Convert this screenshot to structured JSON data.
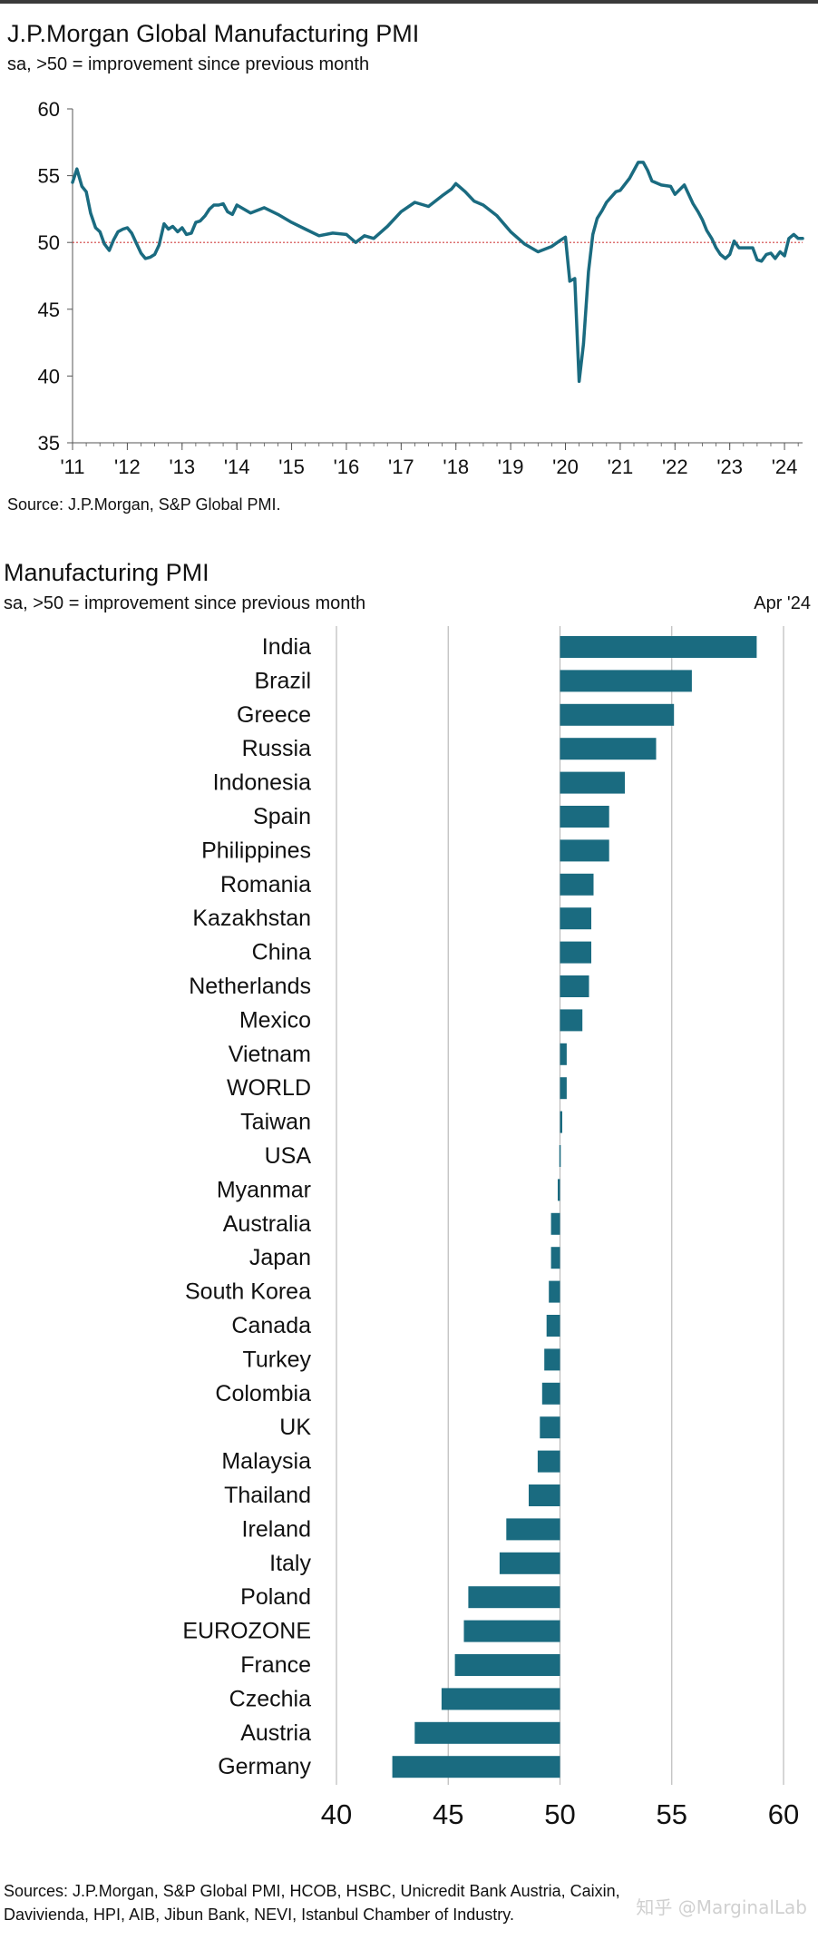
{
  "line_chart": {
    "title": "J.P.Morgan Global Manufacturing PMI",
    "subtitle": "sa, >50 = improvement since previous month",
    "source": "Source: J.P.Morgan, S&P Global PMI.",
    "colors": {
      "line": "#1a6b80",
      "reference": "#d04040",
      "axis": "#555555"
    }
  },
  "bar_chart": {
    "title": "Manufacturing PMI",
    "subtitle": "sa, >50 = improvement since previous month",
    "date_label": "Apr '24",
    "source_line1": "Sources: J.P.Morgan, S&P Global PMI, HCOB, HSBC, Unicredit Bank Austria, Caixin,",
    "source_line2": "Davivienda, HPI, AIB, Jibun Bank, NEVI, Istanbul Chamber of Industry.",
    "colors": {
      "bar": "#1a6b80",
      "grid": "#bbbbbb"
    }
  },
  "watermark": "知乎 @MarginalLab",
  "chart_data": [
    {
      "type": "line",
      "x_tick_labels": [
        "'11",
        "'12",
        "'13",
        "'14",
        "'15",
        "'16",
        "'17",
        "'18",
        "'19",
        "'20",
        "'21",
        "'22",
        "'23",
        "'24"
      ],
      "y_ticks": [
        35,
        40,
        45,
        50,
        55,
        60
      ],
      "ylim": [
        35,
        60
      ],
      "xlim": [
        2011.0,
        2024.33
      ],
      "reference_line": 50,
      "series": [
        {
          "x": [
            2011.0,
            2011.08,
            2011.17,
            2011.25,
            2011.33,
            2011.42,
            2011.5,
            2011.58,
            2011.67,
            2011.75,
            2011.83,
            2011.92,
            2012.0,
            2012.08,
            2012.17,
            2012.25,
            2012.33,
            2012.42,
            2012.5,
            2012.58,
            2012.67,
            2012.75,
            2012.83,
            2012.92,
            2013.0,
            2013.08,
            2013.17,
            2013.25,
            2013.33,
            2013.42,
            2013.5,
            2013.58,
            2013.67,
            2013.75,
            2013.83,
            2013.92,
            2014.0,
            2014.25,
            2014.5,
            2014.75,
            2015.0,
            2015.25,
            2015.5,
            2015.75,
            2016.0,
            2016.17,
            2016.33,
            2016.5,
            2016.75,
            2017.0,
            2017.25,
            2017.5,
            2017.75,
            2017.92,
            2018.0,
            2018.17,
            2018.33,
            2018.5,
            2018.75,
            2019.0,
            2019.25,
            2019.5,
            2019.75,
            2019.92,
            2020.0,
            2020.08,
            2020.17,
            2020.25,
            2020.33,
            2020.42,
            2020.5,
            2020.58,
            2020.67,
            2020.75,
            2020.92,
            2021.0,
            2021.17,
            2021.33,
            2021.42,
            2021.5,
            2021.58,
            2021.75,
            2021.92,
            2022.0,
            2022.17,
            2022.33,
            2022.42,
            2022.5,
            2022.58,
            2022.67,
            2022.75,
            2022.83,
            2022.92,
            2023.0,
            2023.08,
            2023.17,
            2023.25,
            2023.42,
            2023.5,
            2023.58,
            2023.67,
            2023.75,
            2023.83,
            2023.92,
            2024.0,
            2024.08,
            2024.17,
            2024.25,
            2024.33
          ],
          "y": [
            54.5,
            55.5,
            54.2,
            53.8,
            52.2,
            51.1,
            50.8,
            49.9,
            49.4,
            50.2,
            50.8,
            51.0,
            51.1,
            50.7,
            49.9,
            49.2,
            48.8,
            48.9,
            49.1,
            49.8,
            51.4,
            51.0,
            51.2,
            50.8,
            51.1,
            50.6,
            50.7,
            51.5,
            51.6,
            52.0,
            52.5,
            52.8,
            52.8,
            52.9,
            52.3,
            52.1,
            52.8,
            52.2,
            52.6,
            52.1,
            51.5,
            51.0,
            50.5,
            50.7,
            50.6,
            50.0,
            50.5,
            50.3,
            51.2,
            52.3,
            53.0,
            52.7,
            53.5,
            54.0,
            54.4,
            53.8,
            53.1,
            52.8,
            52.0,
            50.8,
            49.9,
            49.3,
            49.7,
            50.2,
            50.4,
            47.1,
            47.3,
            39.6,
            42.4,
            47.8,
            50.6,
            51.8,
            52.4,
            53.0,
            53.8,
            53.9,
            54.8,
            56.0,
            56.0,
            55.4,
            54.6,
            54.3,
            54.2,
            53.6,
            54.3,
            52.9,
            52.3,
            51.7,
            50.9,
            50.3,
            49.6,
            49.1,
            48.8,
            49.1,
            50.1,
            49.6,
            49.6,
            49.6,
            48.7,
            48.6,
            49.1,
            49.2,
            48.8,
            49.3,
            49.0,
            50.3,
            50.6,
            50.3,
            50.3
          ]
        }
      ]
    },
    {
      "type": "bar",
      "orientation": "horizontal",
      "baseline": 50,
      "xlim": [
        40,
        60
      ],
      "x_ticks": [
        40,
        45,
        50,
        55,
        60
      ],
      "categories": [
        "India",
        "Brazil",
        "Greece",
        "Russia",
        "Indonesia",
        "Spain",
        "Philippines",
        "Romania",
        "Kazakhstan",
        "China",
        "Netherlands",
        "Mexico",
        "Vietnam",
        "WORLD",
        "Taiwan",
        "USA",
        "Myanmar",
        "Australia",
        "Japan",
        "South Korea",
        "Canada",
        "Turkey",
        "Colombia",
        "UK",
        "Malaysia",
        "Thailand",
        "Ireland",
        "Italy",
        "Poland",
        "EUROZONE",
        "France",
        "Czechia",
        "Austria",
        "Germany"
      ],
      "values": [
        58.8,
        55.9,
        55.1,
        54.3,
        52.9,
        52.2,
        52.2,
        51.5,
        51.4,
        51.4,
        51.3,
        51.0,
        50.3,
        50.3,
        50.1,
        50.0,
        49.9,
        49.6,
        49.6,
        49.5,
        49.4,
        49.3,
        49.2,
        49.1,
        49.0,
        48.6,
        47.6,
        47.3,
        45.9,
        45.7,
        45.3,
        44.7,
        43.5,
        42.5
      ]
    }
  ]
}
